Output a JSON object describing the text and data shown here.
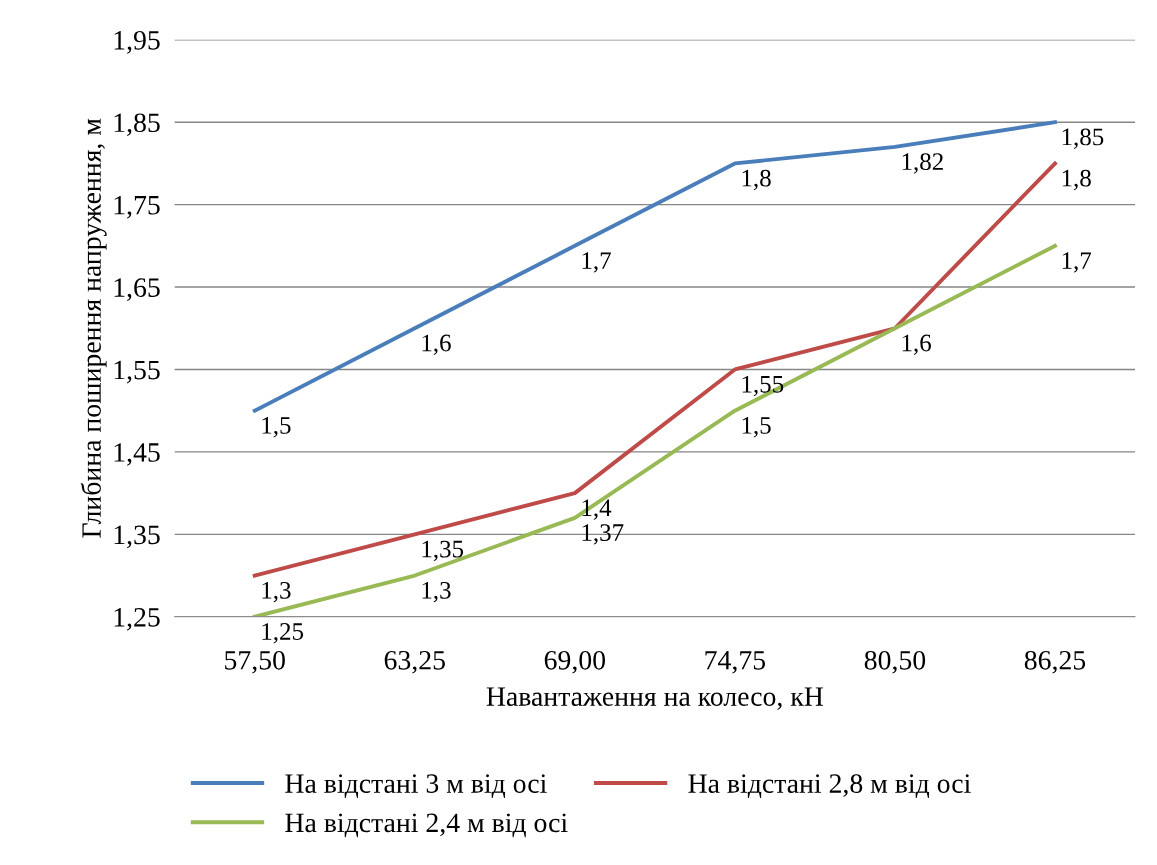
{
  "chart_data": {
    "type": "line",
    "xlabel": "Навантаження на колесо, кН",
    "ylabel": "Глибина поширення напруження, м",
    "categories": [
      "57,50",
      "63,25",
      "69,00",
      "74,75",
      "80,50",
      "86,25"
    ],
    "series": [
      {
        "name": "На відстані 3 м від осі",
        "color": "#4a7ebb",
        "values": [
          1.5,
          1.6,
          1.7,
          1.8,
          1.82,
          1.85
        ],
        "value_labels": [
          "1,5",
          "1,6",
          "1,7",
          "1,8",
          "1,82",
          "1,85"
        ]
      },
      {
        "name": "На відстані 2,8 м від осі",
        "color": "#be4b48",
        "values": [
          1.3,
          1.35,
          1.4,
          1.55,
          1.6,
          1.8
        ],
        "value_labels": [
          "1,3",
          "1,35",
          "1,4",
          "1,55",
          "1,6",
          "1,8"
        ]
      },
      {
        "name": "На відстані 2,4 м від осі",
        "color": "#98b954",
        "values": [
          1.25,
          1.3,
          1.37,
          1.5,
          1.6,
          1.7
        ],
        "value_labels": [
          "1,25",
          "1,3",
          "1,37",
          "1,5",
          null,
          "1,7"
        ]
      }
    ],
    "ylim": [
      1.25,
      1.95
    ],
    "yticks": [
      {
        "value": 1.25,
        "label": "1,25"
      },
      {
        "value": 1.35,
        "label": "1,35"
      },
      {
        "value": 1.45,
        "label": "1,45"
      },
      {
        "value": 1.55,
        "label": "1,55"
      },
      {
        "value": 1.65,
        "label": "1,65"
      },
      {
        "value": 1.75,
        "label": "1,75"
      },
      {
        "value": 1.85,
        "label": "1,85"
      },
      {
        "value": 1.95,
        "label": "1,95"
      }
    ],
    "grid": "y",
    "legend": "bottom",
    "marker": "none",
    "line_style": "solid"
  }
}
